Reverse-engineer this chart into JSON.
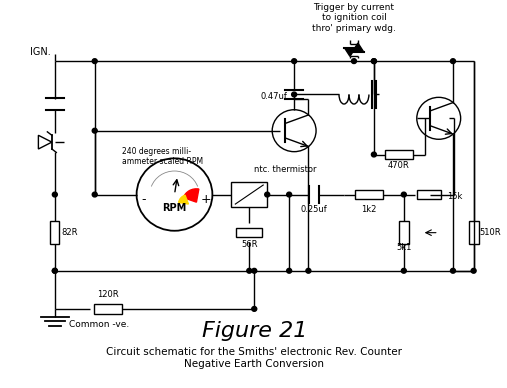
{
  "background_color": "#ffffff",
  "title": "Figure 21",
  "subtitle1": "Circuit schematic for the Smiths' electronic Rev. Counter",
  "subtitle2": "Negative Earth Conversion",
  "title_fontsize": 16,
  "subtitle_fontsize": 7.5,
  "figure_size": [
    5.07,
    3.88
  ],
  "dpi": 100,
  "labels": {
    "IGN": "IGN.",
    "Common": "Common -ve.",
    "label_120R": "120R",
    "label_82R": "82R",
    "label_56R": "56R",
    "label_470R": "470R",
    "label_047uf": "0.47uf",
    "label_025uf": "0.25uf",
    "label_1k2": "1k2",
    "label_15k": "15k",
    "label_5k1": "5k1",
    "label_510R": "510R",
    "label_ntc": "ntc. thermistor",
    "label_240deg": "240 degrees milli-\nammeter scaled RPM",
    "label_trigger": "Trigger by current\nto ignition coil\nthro' primary wdg.",
    "label_RPM": "RPM"
  }
}
